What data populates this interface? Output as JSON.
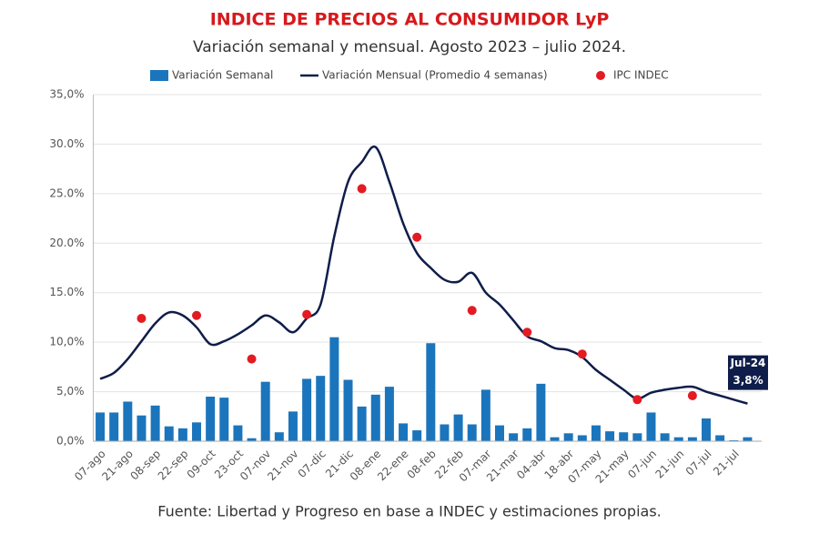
{
  "chart_data": {
    "type": "combo",
    "title": "INDICE DE PRECIOS AL CONSUMIDOR LyP",
    "subtitle": "Variación semanal y mensual. Agosto 2023 – julio 2024.",
    "source": "Fuente: Libertad y Progreso en base a INDEC y estimaciones propias.",
    "categories": [
      "07-ago",
      null,
      "21-ago",
      null,
      "08-sep",
      null,
      "22-sep",
      null,
      "09-oct",
      null,
      "23-oct",
      null,
      "07-nov",
      null,
      "21-nov",
      null,
      "07-dic",
      null,
      "21-dic",
      null,
      "08-ene",
      null,
      "22-ene",
      null,
      "08-feb",
      null,
      "22-feb",
      null,
      "07-mar",
      null,
      "21-mar",
      null,
      "04-abr",
      null,
      "18-abr",
      null,
      "07-may",
      null,
      "21-may",
      null,
      "07-jun",
      null,
      "21-jun",
      null,
      "07-jul",
      null,
      "21-jul",
      null
    ],
    "series": [
      {
        "name": "Variación Semanal",
        "type": "bar",
        "color": "#1b75bc",
        "values": [
          2.9,
          2.9,
          4.0,
          2.6,
          3.6,
          1.5,
          1.3,
          1.9,
          4.5,
          4.4,
          1.6,
          0.3,
          6.0,
          0.9,
          3.0,
          6.3,
          6.6,
          10.5,
          6.2,
          3.5,
          4.7,
          5.5,
          1.8,
          1.1,
          9.9,
          1.7,
          2.7,
          1.7,
          5.2,
          1.6,
          0.8,
          1.3,
          5.8,
          0.4,
          0.8,
          0.6,
          1.6,
          1.0,
          0.9,
          0.8,
          2.9,
          0.8,
          0.4,
          0.4,
          2.3,
          0.6,
          0.1,
          0.4
        ]
      },
      {
        "name": "Variación Mensual (Promedio 4 semanas)",
        "type": "line",
        "color": "#0f1d4a",
        "values": [
          6.3,
          6.9,
          8.3,
          10.1,
          11.9,
          13.0,
          12.7,
          11.5,
          9.8,
          10.1,
          10.8,
          11.7,
          12.7,
          12.0,
          11.0,
          12.4,
          13.8,
          20.7,
          26.2,
          28.2,
          29.7,
          26.2,
          22.0,
          19.0,
          17.5,
          16.3,
          16.1,
          17.0,
          15.0,
          13.8,
          12.2,
          10.6,
          10.1,
          9.4,
          9.2,
          8.5,
          7.2,
          6.2,
          5.2,
          4.3,
          4.9,
          5.2,
          5.4,
          5.5,
          5.0,
          4.6,
          4.2,
          3.8
        ]
      },
      {
        "name": "IPC INDEC",
        "type": "scatter",
        "color": "#e31b23",
        "values": [
          null,
          null,
          null,
          12.4,
          null,
          null,
          null,
          12.7,
          null,
          null,
          null,
          8.3,
          null,
          null,
          null,
          12.8,
          null,
          null,
          null,
          25.5,
          null,
          null,
          null,
          20.6,
          null,
          null,
          null,
          13.2,
          null,
          null,
          null,
          11.0,
          null,
          null,
          null,
          8.8,
          null,
          null,
          null,
          4.2,
          null,
          null,
          null,
          4.6,
          null,
          null,
          null,
          null
        ]
      }
    ],
    "ylim": [
      0,
      35
    ],
    "yticks": [
      {
        "value": 0,
        "label": "0,0%"
      },
      {
        "value": 5,
        "label": "5,0%"
      },
      {
        "value": 10,
        "label": "10,0%"
      },
      {
        "value": 15,
        "label": "15.0%"
      },
      {
        "value": 20,
        "label": "20.0%"
      },
      {
        "value": 25,
        "label": "25.0%"
      },
      {
        "value": 30,
        "label": "30.0%"
      },
      {
        "value": 35,
        "label": "35,0%"
      }
    ],
    "grid": true,
    "legend": "top",
    "annotation": {
      "text": "Jul-24",
      "value": 3.8,
      "value_label": "3,8%",
      "color": "#0f1d4a"
    }
  }
}
